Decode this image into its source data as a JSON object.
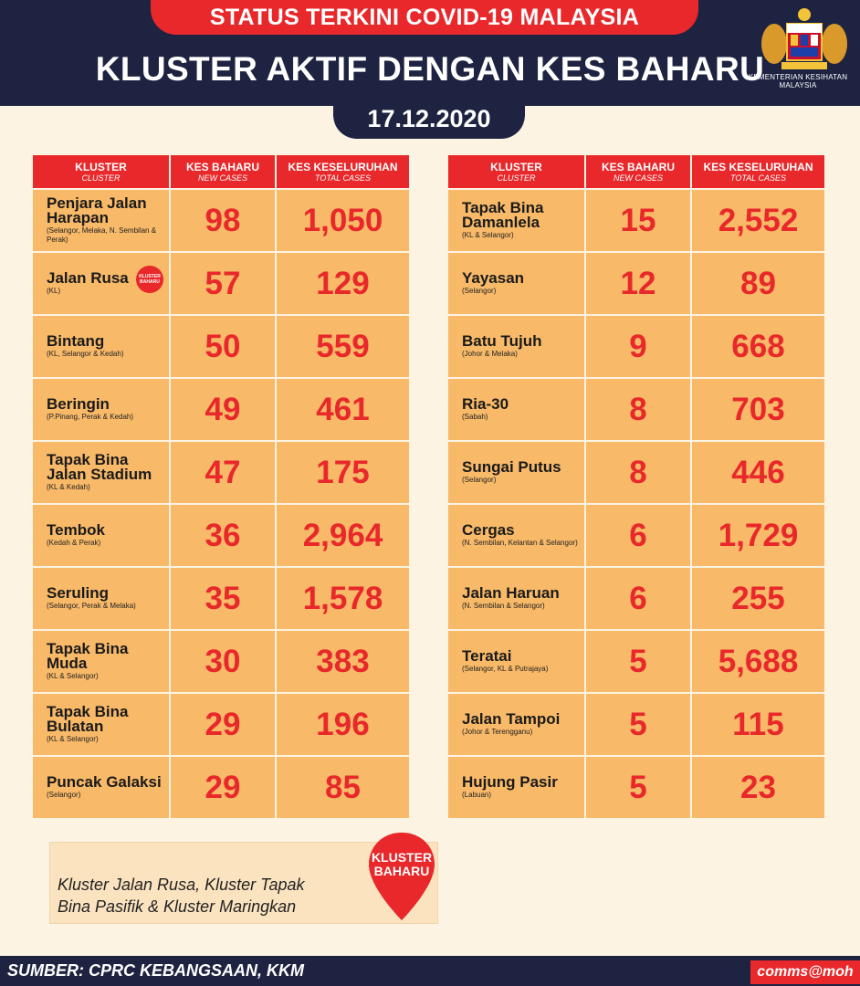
{
  "header": {
    "top_banner": "STATUS TERKINI COVID-19 MALAYSIA",
    "title": "KLUSTER AKTIF DENGAN KES BAHARU",
    "date": "17.12.2020",
    "ministry": "KEMENTERIAN KESIHATAN MALAYSIA"
  },
  "table_headers": {
    "cluster": "KLUSTER",
    "cluster_sub": "CLUSTER",
    "new": "KES BAHARU",
    "new_sub": "NEW CASES",
    "total": "KES KESELURUHAN",
    "total_sub": "TOTAL CASES"
  },
  "left_rows": [
    {
      "name": "Penjara Jalan Harapan",
      "state": "(Selangor, Melaka, N. Sembilan & Perak)",
      "new": "98",
      "total": "1,050"
    },
    {
      "name": "Jalan Rusa",
      "state": "(KL)",
      "new": "57",
      "total": "129",
      "badge": "KLUSTER BAHARU"
    },
    {
      "name": "Bintang",
      "state": "(KL, Selangor & Kedah)",
      "new": "50",
      "total": "559"
    },
    {
      "name": "Beringin",
      "state": "(P.Pinang, Perak & Kedah)",
      "new": "49",
      "total": "461"
    },
    {
      "name": "Tapak Bina Jalan Stadium",
      "state": "(KL & Kedah)",
      "new": "47",
      "total": "175"
    },
    {
      "name": "Tembok",
      "state": "(Kedah & Perak)",
      "new": "36",
      "total": "2,964"
    },
    {
      "name": "Seruling",
      "state": "(Selangor, Perak & Melaka)",
      "new": "35",
      "total": "1,578"
    },
    {
      "name": "Tapak Bina Muda",
      "state": "(KL & Selangor)",
      "new": "30",
      "total": "383"
    },
    {
      "name": "Tapak Bina Bulatan",
      "state": "(KL & Selangor)",
      "new": "29",
      "total": "196"
    },
    {
      "name": "Puncak Galaksi",
      "state": "(Selangor)",
      "new": "29",
      "total": "85"
    }
  ],
  "right_rows": [
    {
      "name": "Tapak Bina Damanlela",
      "state": "(KL & Selangor)",
      "new": "15",
      "total": "2,552"
    },
    {
      "name": "Yayasan",
      "state": "(Selangor)",
      "new": "12",
      "total": "89"
    },
    {
      "name": "Batu Tujuh",
      "state": "(Johor & Melaka)",
      "new": "9",
      "total": "668"
    },
    {
      "name": "Ria-30",
      "state": "(Sabah)",
      "new": "8",
      "total": "703"
    },
    {
      "name": "Sungai Putus",
      "state": "(Selangor)",
      "new": "8",
      "total": "446"
    },
    {
      "name": "Cergas",
      "state": "(N. Sembilan, Kelantan & Selangor)",
      "new": "6",
      "total": "1,729"
    },
    {
      "name": "Jalan Haruan",
      "state": "(N. Sembilan & Selangor)",
      "new": "6",
      "total": "255"
    },
    {
      "name": "Teratai",
      "state": "(Selangor, KL & Putrajaya)",
      "new": "5",
      "total": "5,688"
    },
    {
      "name": "Jalan Tampoi",
      "state": "(Johor & Terengganu)",
      "new": "5",
      "total": "115"
    },
    {
      "name": "Hujung Pasir",
      "state": "(Labuan)",
      "new": "5",
      "total": "23"
    }
  ],
  "note": {
    "line1": "Kluster Jalan Rusa, Kluster Tapak",
    "line2": "Bina Pasifik & Kluster Maringkan",
    "pin_line1": "KLUSTER",
    "pin_line2": "BAHARU"
  },
  "footer": {
    "source": "SUMBER: CPRC KEBANGSAAN, KKM",
    "tag": "comms@moh"
  },
  "colors": {
    "navy": "#1d2340",
    "red": "#e8282a",
    "cell": "#f8b968",
    "bg": "#fdf3e3"
  }
}
